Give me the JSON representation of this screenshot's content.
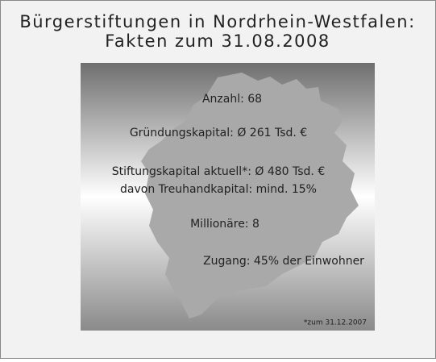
{
  "title": [
    "Bürgerstiftungen in Nordrhein-Westfalen:",
    "Fakten zum 31.08.2008"
  ],
  "facts": [
    "Anzahl: 68",
    "Gründungskapital: Ø 261 Tsd. €",
    "Stiftungskapital aktuell*: Ø 480 Tsd. €",
    "davon Treuhandkapital: mind. 15%",
    "Millionäre: 8",
    "Zugang: 45% der Einwohner"
  ],
  "footnote": "*zum 31.12.2007"
}
